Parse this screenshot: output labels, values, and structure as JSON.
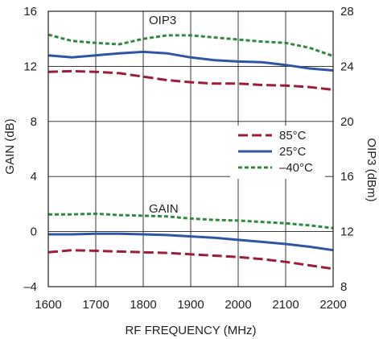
{
  "chart_data": {
    "type": "line",
    "xlabel": "RF FREQUENCY (MHz)",
    "ylabel_left": "GAIN (dB)",
    "ylabel_right": "OIP3 (dBm)",
    "xlim": [
      1600,
      2200
    ],
    "ylim_left": [
      -4,
      16
    ],
    "ylim_right": [
      8,
      28
    ],
    "x_ticks": [
      "1600",
      "1700",
      "1800",
      "1900",
      "2000",
      "2100",
      "2200"
    ],
    "y_left_ticks": [
      "–4",
      "0",
      "4",
      "8",
      "12",
      "16"
    ],
    "y_right_ticks": [
      "8",
      "12",
      "16",
      "20",
      "24",
      "28"
    ],
    "grid": true,
    "legend_position": "right-middle",
    "annotations": {
      "oip3": "OIP3",
      "gain": "GAIN"
    },
    "series": [
      {
        "name": "85°C",
        "color": "#9b1d38",
        "dash": "long-dash",
        "oip3": [
          [
            1600,
            23.6
          ],
          [
            1650,
            23.65
          ],
          [
            1700,
            23.6
          ],
          [
            1750,
            23.5
          ],
          [
            1800,
            23.25
          ],
          [
            1850,
            23.0
          ],
          [
            1900,
            22.85
          ],
          [
            1950,
            22.75
          ],
          [
            2000,
            22.75
          ],
          [
            2050,
            22.65
          ],
          [
            2100,
            22.6
          ],
          [
            2150,
            22.5
          ],
          [
            2200,
            22.3
          ]
        ],
        "gain": [
          [
            1600,
            -1.5
          ],
          [
            1650,
            -1.35
          ],
          [
            1700,
            -1.4
          ],
          [
            1750,
            -1.45
          ],
          [
            1800,
            -1.5
          ],
          [
            1850,
            -1.55
          ],
          [
            1900,
            -1.65
          ],
          [
            1950,
            -1.75
          ],
          [
            2000,
            -1.85
          ],
          [
            2050,
            -2.0
          ],
          [
            2100,
            -2.2
          ],
          [
            2150,
            -2.45
          ],
          [
            2200,
            -2.7
          ]
        ]
      },
      {
        "name": "25°C",
        "color": "#2e56a4",
        "dash": "solid",
        "oip3": [
          [
            1600,
            24.8
          ],
          [
            1650,
            24.65
          ],
          [
            1700,
            24.8
          ],
          [
            1750,
            24.95
          ],
          [
            1800,
            25.05
          ],
          [
            1850,
            24.95
          ],
          [
            1900,
            24.65
          ],
          [
            1950,
            24.45
          ],
          [
            2000,
            24.35
          ],
          [
            2050,
            24.3
          ],
          [
            2100,
            24.1
          ],
          [
            2150,
            23.85
          ],
          [
            2200,
            23.7
          ]
        ],
        "gain": [
          [
            1600,
            -0.2
          ],
          [
            1650,
            -0.2
          ],
          [
            1700,
            -0.15
          ],
          [
            1750,
            -0.15
          ],
          [
            1800,
            -0.2
          ],
          [
            1850,
            -0.25
          ],
          [
            1900,
            -0.35
          ],
          [
            1950,
            -0.45
          ],
          [
            2000,
            -0.6
          ],
          [
            2050,
            -0.75
          ],
          [
            2100,
            -0.9
          ],
          [
            2150,
            -1.1
          ],
          [
            2200,
            -1.35
          ]
        ]
      },
      {
        "name": "–40°C",
        "color": "#2e8b3d",
        "dash": "short-dash",
        "oip3": [
          [
            1600,
            26.3
          ],
          [
            1650,
            25.85
          ],
          [
            1700,
            25.7
          ],
          [
            1750,
            25.6
          ],
          [
            1800,
            26.0
          ],
          [
            1850,
            26.25
          ],
          [
            1900,
            26.25
          ],
          [
            1950,
            26.1
          ],
          [
            2000,
            25.95
          ],
          [
            2050,
            25.8
          ],
          [
            2100,
            25.7
          ],
          [
            2150,
            25.35
          ],
          [
            2200,
            24.75
          ]
        ],
        "gain": [
          [
            1600,
            1.25
          ],
          [
            1650,
            1.25
          ],
          [
            1700,
            1.3
          ],
          [
            1750,
            1.2
          ],
          [
            1800,
            1.15
          ],
          [
            1850,
            1.1
          ],
          [
            1900,
            0.95
          ],
          [
            1950,
            0.85
          ],
          [
            2000,
            0.8
          ],
          [
            2050,
            0.7
          ],
          [
            2100,
            0.6
          ],
          [
            2150,
            0.45
          ],
          [
            2200,
            0.25
          ]
        ]
      }
    ]
  }
}
